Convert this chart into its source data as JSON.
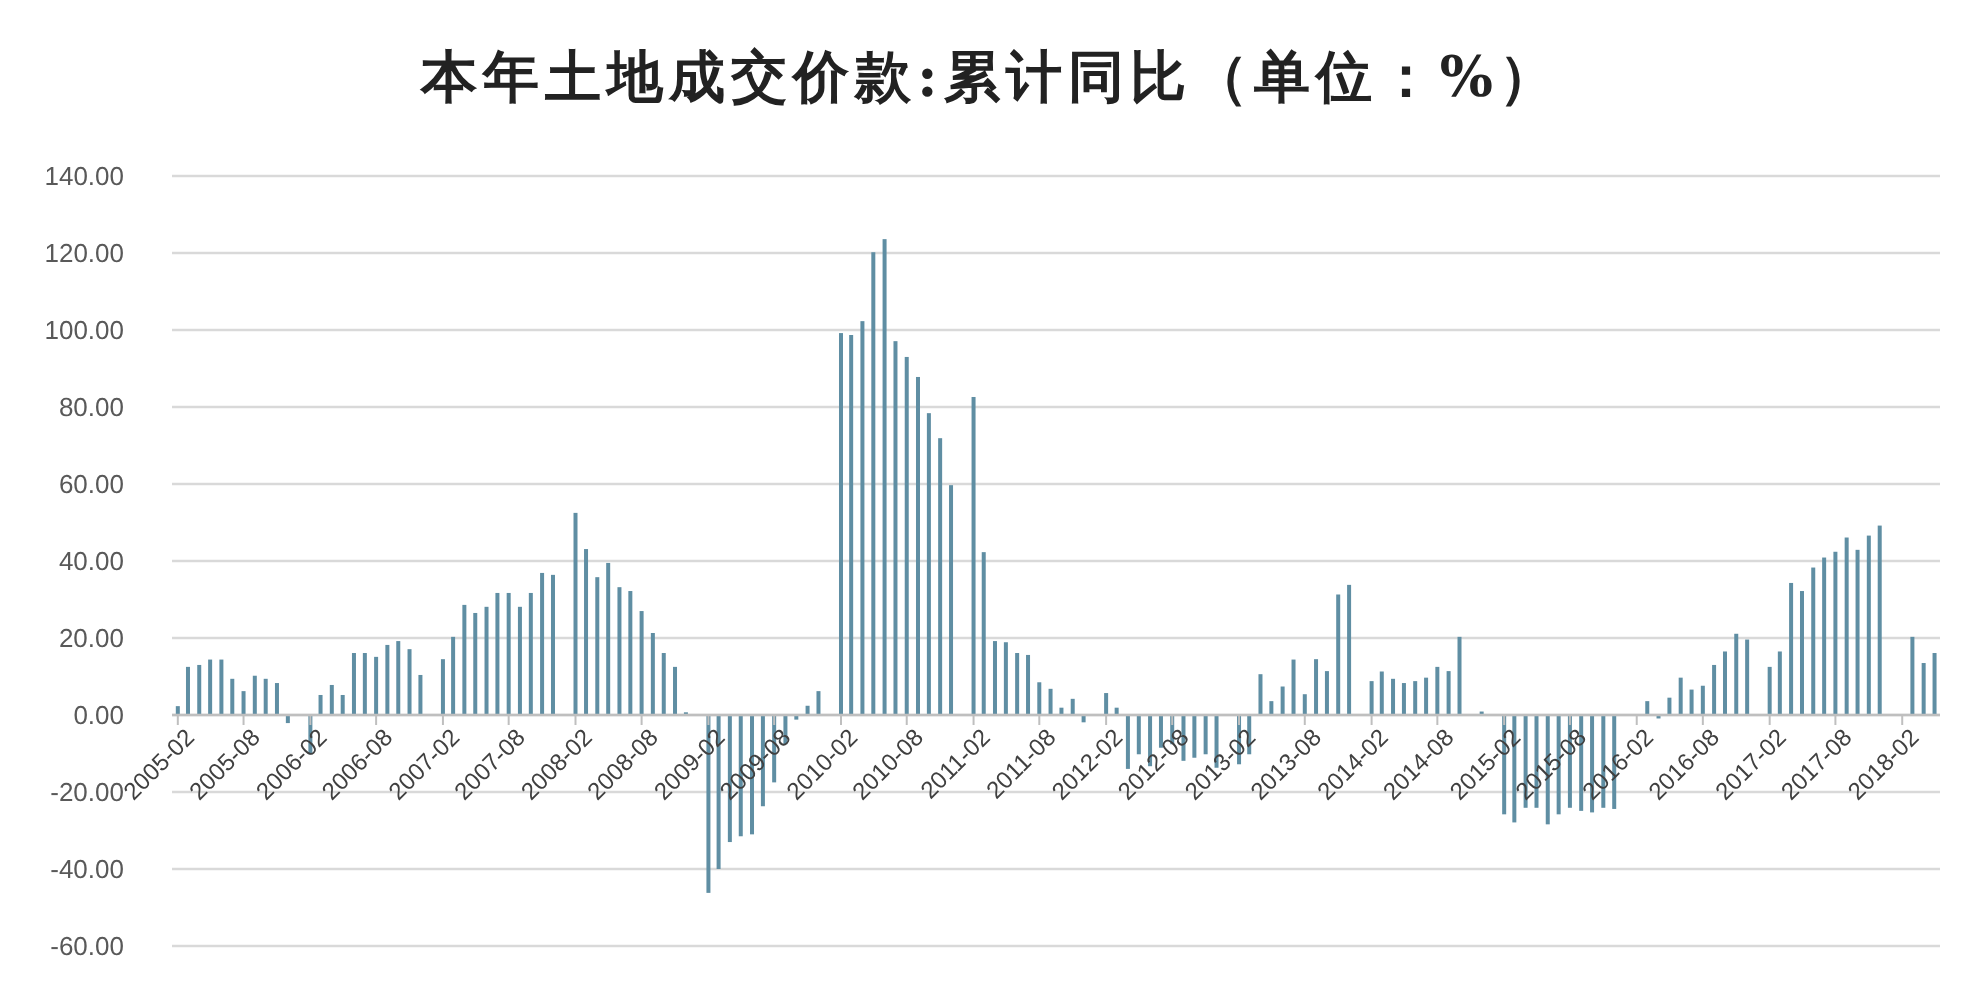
{
  "chart_data": {
    "type": "bar",
    "title": "本年土地成交价款:累计同比（单位：%）",
    "x": [
      "2005-02",
      "2005-03",
      "2005-04",
      "2005-05",
      "2005-06",
      "2005-07",
      "2005-08",
      "2005-09",
      "2005-10",
      "2005-11",
      "2005-12",
      "2006-02",
      "2006-03",
      "2006-04",
      "2006-05",
      "2006-06",
      "2006-07",
      "2006-08",
      "2006-09",
      "2006-10",
      "2006-11",
      "2006-12",
      "2007-02",
      "2007-03",
      "2007-04",
      "2007-05",
      "2007-06",
      "2007-07",
      "2007-08",
      "2007-09",
      "2007-10",
      "2007-11",
      "2007-12",
      "2008-02",
      "2008-03",
      "2008-04",
      "2008-05",
      "2008-06",
      "2008-07",
      "2008-08",
      "2008-09",
      "2008-10",
      "2008-11",
      "2008-12",
      "2009-02",
      "2009-03",
      "2009-04",
      "2009-05",
      "2009-06",
      "2009-07",
      "2009-08",
      "2009-09",
      "2009-10",
      "2009-11",
      "2009-12",
      "2010-02",
      "2010-03",
      "2010-04",
      "2010-05",
      "2010-06",
      "2010-07",
      "2010-08",
      "2010-09",
      "2010-10",
      "2010-11",
      "2010-12",
      "2011-02",
      "2011-03",
      "2011-04",
      "2011-05",
      "2011-06",
      "2011-07",
      "2011-08",
      "2011-09",
      "2011-10",
      "2011-11",
      "2011-12",
      "2012-02",
      "2012-03",
      "2012-04",
      "2012-05",
      "2012-06",
      "2012-07",
      "2012-08",
      "2012-09",
      "2012-10",
      "2012-11",
      "2012-12",
      "2013-02",
      "2013-03",
      "2013-04",
      "2013-05",
      "2013-06",
      "2013-07",
      "2013-08",
      "2013-09",
      "2013-10",
      "2013-11",
      "2013-12",
      "2014-02",
      "2014-03",
      "2014-04",
      "2014-05",
      "2014-06",
      "2014-07",
      "2014-08",
      "2014-09",
      "2014-10",
      "2014-12",
      "2015-02",
      "2015-03",
      "2015-04",
      "2015-05",
      "2015-06",
      "2015-07",
      "2015-08",
      "2015-09",
      "2015-10",
      "2015-11",
      "2015-12",
      "2016-03",
      "2016-04",
      "2016-05",
      "2016-06",
      "2016-07",
      "2016-08",
      "2016-09",
      "2016-10",
      "2016-11",
      "2016-12",
      "2017-02",
      "2017-03",
      "2017-04",
      "2017-05",
      "2017-06",
      "2017-07",
      "2017-08",
      "2017-09",
      "2017-10",
      "2017-11",
      "2017-12",
      "2018-03",
      "2018-04",
      "2018-05"
    ],
    "values": [
      2.3,
      12.5,
      13.0,
      14.4,
      14.4,
      9.4,
      6.2,
      10.2,
      9.4,
      8.3,
      -2.1,
      -10.2,
      5.2,
      7.8,
      5.2,
      16.1,
      16.1,
      15.1,
      18.2,
      19.2,
      17.1,
      10.4,
      14.5,
      20.3,
      28.6,
      26.5,
      28.1,
      31.7,
      31.7,
      28.1,
      31.7,
      36.9,
      36.4,
      52.5,
      43.1,
      35.8,
      39.5,
      33.2,
      32.2,
      27.0,
      21.3,
      16.1,
      12.5,
      0.7,
      -46.2,
      -40.0,
      -33.0,
      -31.5,
      -31.0,
      -23.7,
      -17.5,
      -7.6,
      -1.2,
      2.4,
      6.2,
      99.2,
      98.7,
      102.3,
      120.2,
      123.6,
      97.1,
      93.0,
      87.8,
      78.4,
      71.9,
      59.7,
      82.6,
      42.3,
      19.2,
      18.9,
      16.1,
      15.6,
      8.5,
      6.8,
      1.9,
      4.2,
      -1.9,
      5.7,
      1.9,
      -14.0,
      -10.2,
      -13.3,
      -8.5,
      -7.6,
      -11.9,
      -11.1,
      -10.2,
      -13.7,
      -12.8,
      -10.2,
      10.6,
      3.6,
      7.4,
      14.4,
      5.4,
      14.5,
      11.4,
      31.3,
      33.8,
      8.8,
      11.3,
      9.4,
      8.3,
      8.8,
      9.7,
      12.5,
      11.4,
      20.3,
      0.9,
      -25.8,
      -27.9,
      -24.1,
      -24.1,
      -28.4,
      -25.8,
      -24.1,
      -24.9,
      -25.3,
      -24.1,
      -24.4,
      3.6,
      -0.9,
      4.5,
      9.7,
      6.6,
      7.6,
      13.0,
      16.5,
      21.1,
      19.6,
      12.5,
      16.5,
      34.3,
      32.2,
      38.3,
      40.9,
      42.4,
      46.1,
      42.9,
      46.6,
      49.2,
      20.3,
      13.5,
      16.1
    ],
    "color": "#5f8ea3",
    "xlim": [
      "2005-01-16",
      "2018-05-16"
    ],
    "xticks": [
      "2005-02",
      "2005-08",
      "2006-02",
      "2006-08",
      "2007-02",
      "2007-08",
      "2008-02",
      "2008-08",
      "2009-02",
      "2009-08",
      "2010-02",
      "2010-08",
      "2011-02",
      "2011-08",
      "2012-02",
      "2012-08",
      "2013-02",
      "2013-08",
      "2014-02",
      "2014-08",
      "2015-02",
      "2015-08",
      "2016-02",
      "2016-08",
      "2017-02",
      "2017-08",
      "2018-02"
    ],
    "ylim": [
      -60,
      140
    ],
    "yticks": [
      {
        "value": -60,
        "label": "-60.00"
      },
      {
        "value": -40,
        "label": "-40.00"
      },
      {
        "value": -20,
        "label": "-20.00"
      },
      {
        "value": 0,
        "label": "0.00"
      },
      {
        "value": 20,
        "label": "20.00"
      },
      {
        "value": 40,
        "label": "40.00"
      },
      {
        "value": 60,
        "label": "60.00"
      },
      {
        "value": 80,
        "label": "80.00"
      },
      {
        "value": 100,
        "label": "100.00"
      },
      {
        "value": 120,
        "label": "120.00"
      },
      {
        "value": 140,
        "label": "140.00"
      }
    ],
    "grid": "y"
  }
}
